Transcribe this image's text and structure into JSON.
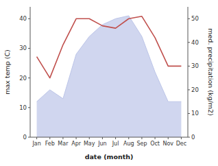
{
  "chart_data": {
    "type": "line",
    "categories": [
      "Jan",
      "Feb",
      "Mar",
      "Apr",
      "May",
      "Jun",
      "Jul",
      "Aug",
      "Sep",
      "Oct",
      "Nov",
      "Dec"
    ],
    "series": [
      {
        "type": "area",
        "color": "#bcc5e8",
        "values": [
          12,
          16,
          13,
          28,
          34,
          38,
          40,
          41,
          34,
          22,
          12,
          12
        ]
      },
      {
        "type": "line",
        "axis": "y2",
        "color": "#c0504d",
        "values": [
          34,
          25,
          39,
          50,
          50,
          47,
          46,
          50,
          51,
          42,
          30,
          30
        ]
      }
    ],
    "xlabel": "date (month)",
    "ylabel": "max temp (C)",
    "y2label": "med. precipitation (kg/m2)",
    "ylim": [
      0,
      44
    ],
    "yticks": [
      0,
      10,
      20,
      30,
      40
    ],
    "y2lim": [
      0,
      55
    ],
    "y2ticks": [
      0,
      10,
      20,
      30,
      40,
      50
    ]
  }
}
